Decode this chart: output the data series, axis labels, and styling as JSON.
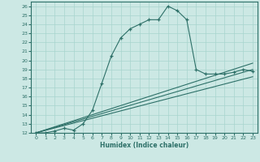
{
  "xlabel": "Humidex (Indice chaleur)",
  "bg_color": "#cce8e4",
  "line_color": "#2d7068",
  "grid_color": "#a8d4ce",
  "xlim": [
    -0.5,
    23.5
  ],
  "ylim": [
    12,
    26.5
  ],
  "xticks": [
    0,
    1,
    2,
    3,
    4,
    5,
    6,
    7,
    8,
    9,
    10,
    11,
    12,
    13,
    14,
    15,
    16,
    17,
    18,
    19,
    20,
    21,
    22,
    23
  ],
  "yticks": [
    12,
    13,
    14,
    15,
    16,
    17,
    18,
    19,
    20,
    21,
    22,
    23,
    24,
    25,
    26
  ],
  "line1_x": [
    0,
    1,
    2,
    3,
    4,
    5,
    6,
    7,
    8,
    9,
    10,
    11,
    12,
    13,
    14,
    15,
    16,
    17,
    18,
    19,
    20,
    21,
    22,
    23
  ],
  "line1_y": [
    12,
    12,
    12.2,
    12.5,
    12.3,
    13.0,
    14.5,
    17.5,
    20.5,
    22.5,
    23.5,
    24.0,
    24.5,
    24.5,
    26.0,
    25.5,
    24.5,
    19.0,
    18.5,
    18.5,
    18.5,
    18.7,
    19.0,
    18.8
  ],
  "line2_x": [
    0,
    23
  ],
  "line2_y": [
    12,
    18.2
  ],
  "line3_x": [
    0,
    23
  ],
  "line3_y": [
    12,
    19.0
  ],
  "line4_x": [
    0,
    23
  ],
  "line4_y": [
    12,
    19.7
  ]
}
